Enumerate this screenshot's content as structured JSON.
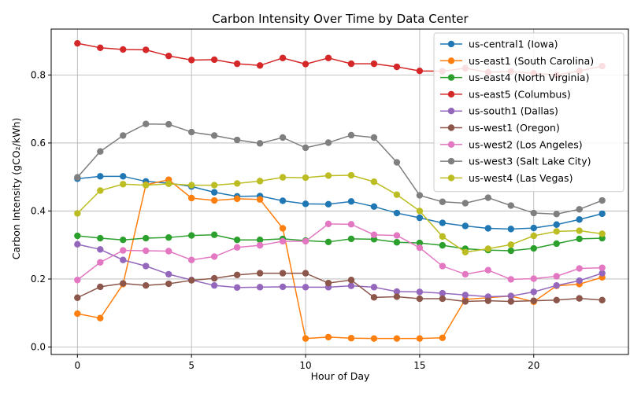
{
  "chart_data": {
    "type": "line",
    "title": "Carbon Intensity Over Time by Data Center",
    "xlabel": "Hour of Day",
    "ylabel": "Carbon Intensity (gCO₂/kWh)",
    "xlim": [
      -1.15,
      24.15
    ],
    "ylim": [
      -0.022,
      0.935
    ],
    "xticks": [
      0,
      5,
      10,
      15,
      20
    ],
    "yticks": [
      0.0,
      0.2,
      0.4,
      0.6,
      0.8
    ],
    "grid": true,
    "legend_position": "top-right",
    "x": [
      0,
      1,
      2,
      3,
      4,
      5,
      6,
      7,
      8,
      9,
      10,
      11,
      12,
      13,
      14,
      15,
      16,
      17,
      18,
      19,
      20,
      21,
      22,
      23
    ],
    "series": [
      {
        "name": "us-central1 (Iowa)",
        "color": "#1f77b4",
        "values": [
          0.495,
          0.502,
          0.502,
          0.487,
          0.482,
          0.472,
          0.455,
          0.443,
          0.444,
          0.43,
          0.421,
          0.42,
          0.428,
          0.413,
          0.394,
          0.38,
          0.365,
          0.356,
          0.349,
          0.347,
          0.35,
          0.36,
          0.375,
          0.392
        ]
      },
      {
        "name": "us-east1 (South Carolina)",
        "color": "#ff7f0e",
        "values": [
          0.098,
          0.085,
          0.185,
          0.477,
          0.492,
          0.438,
          0.431,
          0.436,
          0.434,
          0.349,
          0.025,
          0.029,
          0.026,
          0.025,
          0.025,
          0.025,
          0.027,
          0.14,
          0.145,
          0.15,
          0.133,
          0.18,
          0.185,
          0.205
        ]
      },
      {
        "name": "us-east4 (North Virginia)",
        "color": "#2ca02c",
        "values": [
          0.327,
          0.32,
          0.315,
          0.32,
          0.322,
          0.328,
          0.33,
          0.315,
          0.315,
          0.318,
          0.313,
          0.309,
          0.318,
          0.317,
          0.308,
          0.306,
          0.299,
          0.289,
          0.285,
          0.283,
          0.29,
          0.304,
          0.318,
          0.32
        ]
      },
      {
        "name": "us-east5 (Columbus)",
        "color": "#d62728",
        "values": [
          0.893,
          0.88,
          0.875,
          0.874,
          0.856,
          0.844,
          0.845,
          0.833,
          0.828,
          0.85,
          0.832,
          0.85,
          0.833,
          0.833,
          0.824,
          0.812,
          0.811,
          0.82,
          0.808,
          0.81,
          0.805,
          0.8,
          0.812,
          0.826
        ]
      },
      {
        "name": "us-south1 (Dallas)",
        "color": "#9467bd",
        "values": [
          0.302,
          0.287,
          0.256,
          0.238,
          0.214,
          0.197,
          0.181,
          0.175,
          0.176,
          0.177,
          0.176,
          0.176,
          0.18,
          0.176,
          0.163,
          0.162,
          0.158,
          0.153,
          0.148,
          0.15,
          0.162,
          0.181,
          0.195,
          0.217
        ]
      },
      {
        "name": "us-west1 (Oregon)",
        "color": "#8c564b",
        "values": [
          0.145,
          0.177,
          0.187,
          0.181,
          0.186,
          0.196,
          0.202,
          0.212,
          0.217,
          0.217,
          0.217,
          0.188,
          0.197,
          0.146,
          0.148,
          0.142,
          0.142,
          0.134,
          0.136,
          0.134,
          0.136,
          0.138,
          0.143,
          0.138
        ]
      },
      {
        "name": "us-west2 (Los Angeles)",
        "color": "#e377c2",
        "values": [
          0.197,
          0.249,
          0.284,
          0.283,
          0.282,
          0.256,
          0.266,
          0.293,
          0.299,
          0.311,
          0.311,
          0.362,
          0.361,
          0.33,
          0.328,
          0.292,
          0.238,
          0.214,
          0.226,
          0.199,
          0.201,
          0.208,
          0.231,
          0.233
        ]
      },
      {
        "name": "us-west3 (Salt Lake City)",
        "color": "#7f7f7f",
        "values": [
          0.499,
          0.575,
          0.622,
          0.656,
          0.655,
          0.632,
          0.622,
          0.609,
          0.599,
          0.616,
          0.586,
          0.601,
          0.623,
          0.616,
          0.543,
          0.446,
          0.427,
          0.423,
          0.439,
          0.416,
          0.394,
          0.391,
          0.405,
          0.431
        ]
      },
      {
        "name": "us-west4 (Las Vegas)",
        "color": "#bcbd22",
        "values": [
          0.393,
          0.46,
          0.479,
          0.476,
          0.48,
          0.476,
          0.476,
          0.481,
          0.488,
          0.499,
          0.498,
          0.504,
          0.505,
          0.486,
          0.448,
          0.4,
          0.325,
          0.279,
          0.289,
          0.301,
          0.327,
          0.34,
          0.342,
          0.333
        ]
      }
    ]
  }
}
